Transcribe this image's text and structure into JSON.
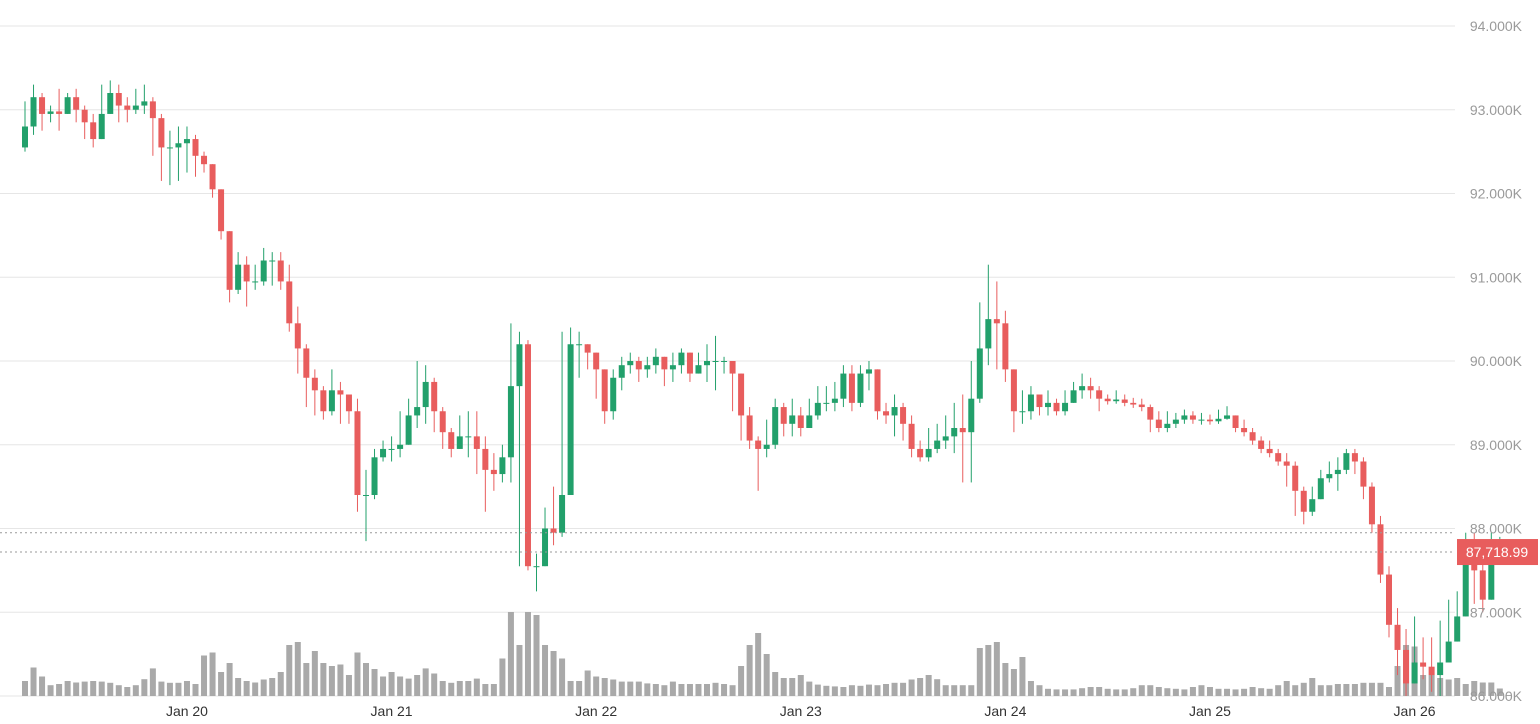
{
  "chart_data": {
    "type": "candlestick",
    "title": "",
    "xlabel": "",
    "ylabel": "",
    "ylim": [
      86000,
      94000
    ],
    "y_ticks": [
      "94.000K",
      "93.000K",
      "92.000K",
      "91.000K",
      "90.000K",
      "89.000K",
      "88.000K",
      "87.000K",
      "86.000K"
    ],
    "y_tick_values": [
      94000,
      93000,
      92000,
      91000,
      90000,
      89000,
      88000,
      87000,
      86000
    ],
    "x_ticks": [
      "Jan 20",
      "Jan 21",
      "Jan 22",
      "Jan 23",
      "Jan 24",
      "Jan 25",
      "Jan 26"
    ],
    "x_tick_hours": [
      19,
      43,
      67,
      91,
      115,
      139,
      163
    ],
    "bar_interval_hours": 1,
    "first_bar_hour": 0,
    "last_price_label": "87,718.99",
    "last_price": 87718.99,
    "ref_price": 87950,
    "colors": {
      "up": "#22a06b",
      "down": "#e85d5d",
      "volume": "#a9a9a9",
      "grid": "#e6e6e6",
      "label_bg": "#e85d5d"
    },
    "grid": true,
    "close": [
      92800,
      93150,
      92950,
      92980,
      92950,
      93150,
      93000,
      92850,
      92650,
      92950,
      93200,
      93050,
      93000,
      93050,
      93100,
      92900,
      92550,
      92550,
      92600,
      92650,
      92450,
      92350,
      92050,
      91550,
      90850,
      91150,
      90950,
      90950,
      91200,
      91200,
      90950,
      90450,
      90150,
      89800,
      89650,
      89400,
      89650,
      89600,
      89400,
      88400,
      88400,
      88850,
      88950,
      88950,
      89000,
      89350,
      89450,
      89750,
      89400,
      89150,
      88950,
      89100,
      89100,
      88950,
      88700,
      88650,
      88850,
      89700,
      90200,
      87550,
      87550,
      88000,
      87950,
      88400,
      90200,
      90200,
      90100,
      89900,
      89400,
      89800,
      89950,
      90000,
      89900,
      89950,
      90050,
      89900,
      89950,
      90100,
      89850,
      89950,
      90000,
      90000,
      90000,
      89850,
      89350,
      89050,
      88950,
      89000,
      89450,
      89250,
      89350,
      89200,
      89350,
      89500,
      89500,
      89550,
      89850,
      89500,
      89850,
      89900,
      89400,
      89350,
      89450,
      89250,
      88950,
      88850,
      88950,
      89050,
      89100,
      89200,
      89150,
      89550,
      90150,
      90500,
      90450,
      89900,
      89400,
      89400,
      89600,
      89450,
      89500,
      89400,
      89500,
      89650,
      89700,
      89650,
      89550,
      89520,
      89540,
      89500,
      89480,
      89450,
      89300,
      89200,
      89250,
      89300,
      89350,
      89300,
      89300,
      89280,
      89310,
      89350,
      89200,
      89150,
      89050,
      88950,
      88900,
      88800,
      88750,
      88450,
      88200,
      88350,
      88600,
      88650,
      88700,
      88900,
      88800,
      88500,
      88050,
      87450,
      86850,
      86550,
      86150,
      86400,
      86350,
      86250,
      86400,
      86650,
      86950,
      87650,
      87500,
      87150,
      87650,
      87700,
      87719
    ],
    "high": [
      93100,
      93300,
      93200,
      93050,
      93250,
      93200,
      93250,
      93050,
      92950,
      93300,
      93350,
      93300,
      93150,
      93250,
      93300,
      93150,
      92950,
      92750,
      92800,
      92800,
      92700,
      92500,
      92350,
      92050,
      91400,
      91300,
      91250,
      91150,
      91350,
      91300,
      91300,
      91150,
      90650,
      90200,
      89900,
      89700,
      89900,
      89750,
      89600,
      89550,
      88700,
      88950,
      89050,
      89100,
      89400,
      89550,
      90000,
      89950,
      89800,
      89450,
      89200,
      89350,
      89400,
      89400,
      89100,
      88900,
      89000,
      90450,
      90350,
      90250,
      87700,
      88250,
      88500,
      90350,
      90400,
      90350,
      90200,
      90100,
      89850,
      89900,
      90050,
      90100,
      90050,
      90050,
      90150,
      90050,
      90100,
      90150,
      90100,
      90100,
      90200,
      90300,
      90050,
      90000,
      89850,
      89450,
      89100,
      89300,
      89550,
      89500,
      89550,
      89450,
      89550,
      89700,
      89700,
      89750,
      89950,
      89950,
      89950,
      90000,
      89900,
      89500,
      89600,
      89500,
      89350,
      89050,
      89200,
      89250,
      89350,
      89500,
      89600,
      90000,
      90700,
      91150,
      90950,
      90600,
      89750,
      89650,
      89700,
      89600,
      89650,
      89550,
      89650,
      89750,
      89850,
      89800,
      89700,
      89600,
      89650,
      89600,
      89560,
      89550,
      89480,
      89400,
      89400,
      89380,
      89420,
      89400,
      89380,
      89360,
      89420,
      89460,
      89350,
      89300,
      89200,
      89100,
      89050,
      88950,
      88900,
      88800,
      88500,
      88500,
      88700,
      88800,
      88850,
      88950,
      88950,
      88850,
      88550,
      88150,
      87550,
      87050,
      86800,
      86950,
      86700,
      86700,
      86900,
      87150,
      87250,
      87950,
      87950,
      87650,
      87950,
      87900,
      87850
    ],
    "low": [
      92500,
      92700,
      92750,
      92850,
      92750,
      92950,
      92850,
      92650,
      92550,
      92650,
      93000,
      92850,
      92850,
      92950,
      92950,
      92450,
      92150,
      92100,
      92150,
      92250,
      92200,
      92250,
      91950,
      91450,
      90700,
      90800,
      90650,
      90850,
      90900,
      90900,
      90850,
      90350,
      89850,
      89450,
      89350,
      89300,
      89350,
      89250,
      89250,
      88200,
      87850,
      88350,
      88800,
      88800,
      88850,
      89000,
      89200,
      89250,
      89150,
      88950,
      88850,
      88950,
      88850,
      88650,
      88200,
      88450,
      88550,
      88550,
      87550,
      87500,
      87250,
      87550,
      87800,
      87900,
      88400,
      89800,
      89900,
      89550,
      89250,
      89300,
      89650,
      89850,
      89750,
      89800,
      89850,
      89700,
      89750,
      89850,
      89750,
      89850,
      89750,
      89650,
      89850,
      89400,
      89050,
      88950,
      88450,
      88850,
      88950,
      89100,
      89100,
      89100,
      89200,
      89300,
      89400,
      89400,
      89450,
      89400,
      89450,
      89650,
      89300,
      89250,
      89100,
      89050,
      88850,
      88800,
      88800,
      88900,
      88950,
      88900,
      88550,
      88550,
      89500,
      89950,
      89900,
      89750,
      89150,
      89250,
      89300,
      89350,
      89350,
      89350,
      89350,
      89500,
      89550,
      89550,
      89400,
      89480,
      89490,
      89460,
      89440,
      89400,
      89150,
      89150,
      89150,
      89200,
      89250,
      89250,
      89240,
      89240,
      89250,
      89300,
      89150,
      89100,
      89000,
      88900,
      88850,
      88750,
      88500,
      88150,
      88050,
      88150,
      88400,
      88550,
      88450,
      88650,
      88650,
      88350,
      87950,
      87350,
      86700,
      86250,
      86000,
      86250,
      86200,
      86050,
      86000,
      86400,
      86700,
      87300,
      87100,
      87000,
      87250,
      87600,
      87600
    ],
    "volume": [
      0.5,
      0.95,
      0.65,
      0.36,
      0.4,
      0.5,
      0.45,
      0.48,
      0.5,
      0.48,
      0.44,
      0.36,
      0.3,
      0.36,
      0.56,
      0.92,
      0.48,
      0.44,
      0.44,
      0.5,
      0.4,
      1.35,
      1.45,
      0.8,
      1.1,
      0.6,
      0.5,
      0.45,
      0.55,
      0.6,
      0.8,
      1.7,
      1.8,
      1.1,
      1.5,
      1.1,
      1.0,
      1.05,
      0.7,
      1.45,
      1.1,
      0.9,
      0.65,
      0.8,
      0.65,
      0.58,
      0.7,
      0.92,
      0.75,
      0.5,
      0.44,
      0.5,
      0.5,
      0.58,
      0.4,
      0.4,
      1.25,
      2.8,
      1.7,
      2.8,
      2.7,
      1.7,
      1.5,
      1.25,
      0.5,
      0.5,
      0.85,
      0.65,
      0.6,
      0.55,
      0.48,
      0.48,
      0.48,
      0.42,
      0.4,
      0.36,
      0.48,
      0.4,
      0.4,
      0.4,
      0.4,
      0.44,
      0.4,
      0.36,
      1.0,
      1.7,
      2.1,
      1.4,
      0.8,
      0.6,
      0.6,
      0.7,
      0.48,
      0.38,
      0.34,
      0.32,
      0.3,
      0.36,
      0.34,
      0.38,
      0.36,
      0.4,
      0.44,
      0.44,
      0.55,
      0.6,
      0.7,
      0.56,
      0.36,
      0.36,
      0.36,
      0.36,
      1.6,
      1.7,
      1.8,
      1.1,
      0.9,
      1.3,
      0.5,
      0.36,
      0.24,
      0.22,
      0.22,
      0.22,
      0.26,
      0.3,
      0.3,
      0.24,
      0.22,
      0.22,
      0.26,
      0.36,
      0.36,
      0.3,
      0.26,
      0.24,
      0.22,
      0.3,
      0.36,
      0.3,
      0.24,
      0.24,
      0.22,
      0.24,
      0.3,
      0.26,
      0.24,
      0.36,
      0.5,
      0.36,
      0.44,
      0.6,
      0.36,
      0.36,
      0.4,
      0.4,
      0.4,
      0.44,
      0.44,
      0.44,
      0.3,
      1.0,
      1.7,
      1.65,
      0.7,
      0.7,
      0.6,
      0.55,
      0.6,
      0.4,
      0.5,
      0.45,
      0.45,
      0.25,
      0.02
    ]
  }
}
